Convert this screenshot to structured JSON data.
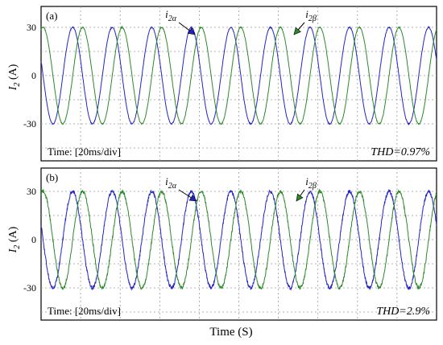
{
  "figure": {
    "xlabel": "Time (S)",
    "ylabel_main": "I",
    "ylabel_sub": "2",
    "ylabel_unit": " (A)"
  },
  "chart_data": [
    {
      "type": "line",
      "panel_label": "(a)",
      "time_scale_text": "Time: [20ms/div]",
      "thd_text": "THD=0.97%",
      "y_ticks": [
        "30",
        "0",
        "-30"
      ],
      "y_tick_values": [
        30,
        0,
        -30
      ],
      "ylim": [
        -45,
        45
      ],
      "x_divisions": 10,
      "time_per_div_ms": 20,
      "grid": true,
      "series": [
        {
          "name": "i2α",
          "amplitude": 30,
          "frequency_hz": 50,
          "phase_deg": 0,
          "color": "#2323c8"
        },
        {
          "name": "i2β",
          "amplitude": 30,
          "frequency_hz": 50,
          "phase_deg": -90,
          "color": "#2a8a2a"
        }
      ],
      "annotations": [
        {
          "text_main": "i",
          "text_sub": "2α",
          "target_series": "i2α"
        },
        {
          "text_main": "i",
          "text_sub": "2β",
          "target_series": "i2β"
        }
      ]
    },
    {
      "type": "line",
      "panel_label": "(b)",
      "time_scale_text": "Time: [20ms/div]",
      "thd_text": "THD=2.9%",
      "y_ticks": [
        "30",
        "0",
        "-30"
      ],
      "y_tick_values": [
        30,
        0,
        -30
      ],
      "ylim": [
        -45,
        45
      ],
      "x_divisions": 10,
      "time_per_div_ms": 20,
      "grid": true,
      "series": [
        {
          "name": "i2α",
          "amplitude": 30,
          "frequency_hz": 50,
          "phase_deg": 0,
          "color": "#2323c8"
        },
        {
          "name": "i2β",
          "amplitude": 30,
          "frequency_hz": 50,
          "phase_deg": -90,
          "color": "#2a8a2a"
        }
      ],
      "annotations": [
        {
          "text_main": "i",
          "text_sub": "2α",
          "target_series": "i2α"
        },
        {
          "text_main": "i",
          "text_sub": "2β",
          "target_series": "i2β"
        }
      ]
    }
  ]
}
